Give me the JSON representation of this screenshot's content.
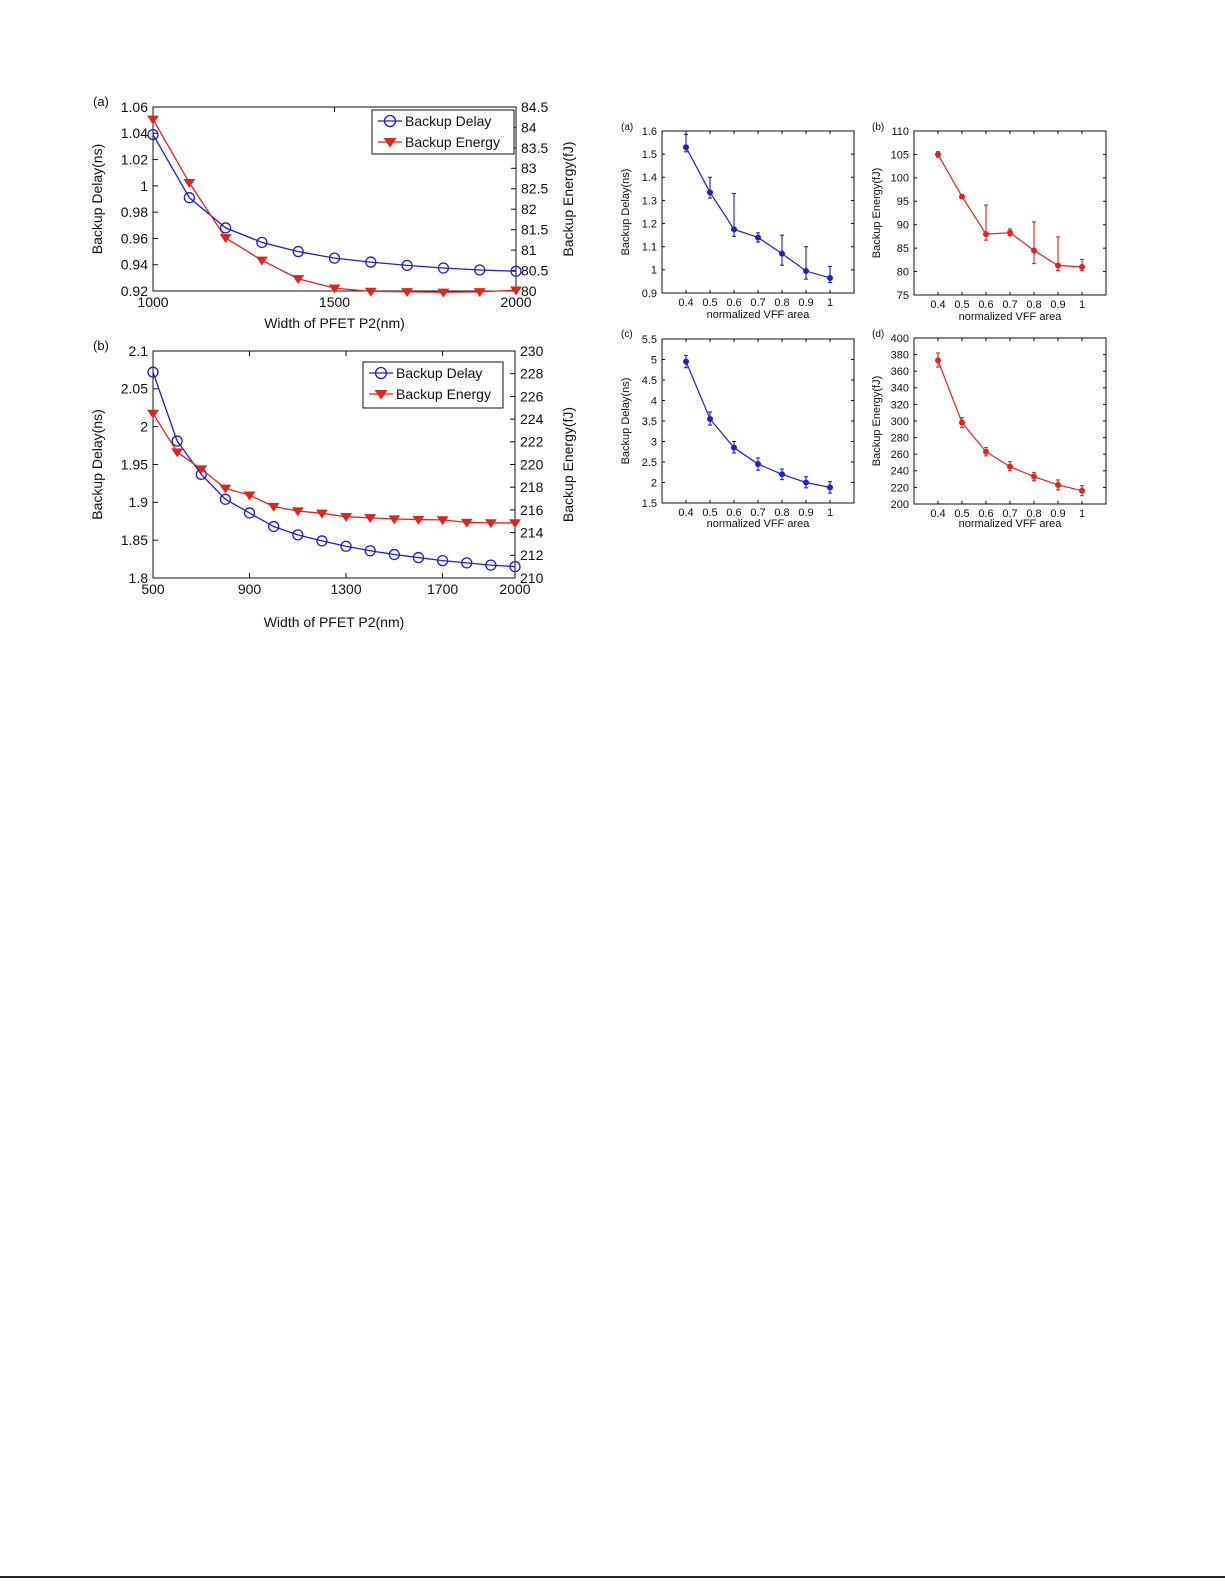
{
  "colors": {
    "delay": "#1f1fd6",
    "energy": "#e0251e",
    "axis": "#111111"
  },
  "chart_data": [
    {
      "id": "left-a",
      "type": "line",
      "panel_label": "(a)",
      "xlabel": "Width of PFET P2(nm)",
      "ylabel": "Backup Delay(ns)",
      "ylabel_right": "Backup Energy(fJ)",
      "xlim": [
        1000,
        2000
      ],
      "xticks": [
        1000,
        1500,
        2000
      ],
      "ylim": [
        0.92,
        1.06
      ],
      "yticks": [
        0.92,
        0.94,
        0.96,
        0.98,
        1,
        1.02,
        1.04,
        1.06
      ],
      "ylim_right": [
        80,
        84.5
      ],
      "yticks_right": [
        80,
        80.5,
        81,
        81.5,
        82,
        82.5,
        83,
        83.5,
        84,
        84.5
      ],
      "legend": {
        "position": "top-right",
        "entries": [
          "Backup Delay",
          "Backup Energy"
        ]
      },
      "grid": false,
      "x": [
        1000,
        1100,
        1200,
        1300,
        1400,
        1500,
        1600,
        1700,
        1800,
        1900,
        2000
      ],
      "series": [
        {
          "name": "Backup Delay",
          "axis": "left",
          "marker": "circle",
          "color": "#1f1fd6",
          "values": [
            1.039,
            0.991,
            0.968,
            0.957,
            0.95,
            0.945,
            0.942,
            0.9395,
            0.9375,
            0.936,
            0.935
          ]
        },
        {
          "name": "Backup Energy",
          "axis": "right",
          "marker": "triangle-down",
          "color": "#e0251e",
          "values": [
            84.2,
            82.65,
            81.3,
            80.75,
            80.3,
            80.07,
            79.99,
            79.98,
            79.97,
            79.98,
            80.02
          ]
        }
      ]
    },
    {
      "id": "left-b",
      "type": "line",
      "panel_label": "(b)",
      "xlabel": "Width of PFET P2(nm)",
      "ylabel": "Backup Delay(ns)",
      "ylabel_right": "Backup Energy(fJ)",
      "xlim": [
        500,
        2000
      ],
      "xticks": [
        500,
        900,
        1300,
        1700,
        2000
      ],
      "ylim": [
        1.8,
        2.1
      ],
      "yticks": [
        1.8,
        1.85,
        1.9,
        1.95,
        2,
        2.05,
        2.1
      ],
      "ylim_right": [
        210,
        230
      ],
      "yticks_right": [
        210,
        212,
        214,
        216,
        218,
        220,
        222,
        224,
        226,
        228,
        230
      ],
      "legend": {
        "position": "top-right",
        "entries": [
          "Backup Delay",
          "Backup Energy"
        ]
      },
      "grid": false,
      "x": [
        500,
        600,
        700,
        800,
        900,
        1000,
        1100,
        1200,
        1300,
        1400,
        1500,
        1600,
        1700,
        1800,
        1900,
        2000
      ],
      "series": [
        {
          "name": "Backup Delay",
          "axis": "left",
          "marker": "circle",
          "color": "#1f1fd6",
          "values": [
            2.072,
            1.981,
            1.937,
            1.904,
            1.886,
            1.868,
            1.857,
            1.849,
            1.842,
            1.836,
            1.831,
            1.827,
            1.823,
            1.82,
            1.817,
            1.815
          ]
        },
        {
          "name": "Backup Energy",
          "axis": "right",
          "marker": "triangle-down",
          "color": "#e0251e",
          "values": [
            224.5,
            221.1,
            219.6,
            217.9,
            217.3,
            216.3,
            215.9,
            215.7,
            215.4,
            215.3,
            215.2,
            215.15,
            215.12,
            214.9,
            214.85,
            214.85
          ]
        }
      ]
    },
    {
      "id": "right-a",
      "type": "line",
      "panel_label": "(a)",
      "xlabel": "normalized VFF area",
      "ylabel": "Backup Delay(ns)",
      "xlim": [
        0.3,
        1.1
      ],
      "xticks": [
        0.4,
        0.5,
        0.6,
        0.7,
        0.8,
        0.9,
        1
      ],
      "xtick_labels": [
        "0.4",
        "0.5",
        "0.6",
        "0.7",
        "0.8",
        "0.9",
        "1"
      ],
      "ylim": [
        0.9,
        1.6
      ],
      "yticks": [
        0.9,
        1,
        1.1,
        1.2,
        1.3,
        1.4,
        1.5,
        1.6
      ],
      "grid": false,
      "x": [
        0.4,
        0.5,
        0.6,
        0.7,
        0.8,
        0.9,
        1
      ],
      "series": [
        {
          "color": "#1f1fd6",
          "values": [
            1.53,
            1.335,
            1.175,
            1.14,
            1.07,
            0.995,
            0.965
          ],
          "err_low": [
            1.51,
            1.31,
            1.145,
            1.12,
            1.02,
            0.96,
            0.945
          ],
          "err_high": [
            1.585,
            1.4,
            1.33,
            1.16,
            1.15,
            1.1,
            1.015
          ]
        }
      ]
    },
    {
      "id": "right-b",
      "type": "line",
      "panel_label": "(b)",
      "xlabel": "normalized VFF area",
      "ylabel": "Backup Energy(fJ)",
      "xlim": [
        0.3,
        1.1
      ],
      "xticks": [
        0.4,
        0.5,
        0.6,
        0.7,
        0.8,
        0.9,
        1
      ],
      "xtick_labels": [
        "0.4",
        "0.5",
        "0.6",
        "0.7",
        "0.8",
        "0.9",
        "1"
      ],
      "ylim": [
        75,
        110
      ],
      "yticks": [
        75,
        80,
        85,
        90,
        95,
        100,
        105,
        110
      ],
      "grid": false,
      "x": [
        0.4,
        0.5,
        0.6,
        0.7,
        0.8,
        0.9,
        1
      ],
      "series": [
        {
          "color": "#e0251e",
          "values": [
            105,
            96,
            88,
            88.3,
            84.5,
            81.3,
            81
          ],
          "err_low": [
            104.4,
            95.8,
            86.7,
            87.6,
            81.7,
            80.2,
            80.2
          ],
          "err_high": [
            105.6,
            96.3,
            94.2,
            89.1,
            90.6,
            87.4,
            82.6
          ]
        }
      ]
    },
    {
      "id": "right-c",
      "type": "line",
      "panel_label": "(c)",
      "xlabel": "normalized VFF area",
      "ylabel": "Backup Delay(ns)",
      "xlim": [
        0.3,
        1.1
      ],
      "xticks": [
        0.4,
        0.5,
        0.6,
        0.7,
        0.8,
        0.9,
        1
      ],
      "xtick_labels": [
        "0.4",
        "0.5",
        "0.6",
        "0.7",
        "0.8",
        "0.9",
        "1"
      ],
      "ylim": [
        1.5,
        5.5
      ],
      "yticks": [
        1.5,
        2,
        2.5,
        3,
        3.5,
        4,
        4.5,
        5,
        5.5
      ],
      "grid": false,
      "x": [
        0.4,
        0.5,
        0.6,
        0.7,
        0.8,
        0.9,
        1
      ],
      "series": [
        {
          "color": "#1f1fd6",
          "values": [
            4.95,
            3.55,
            2.85,
            2.45,
            2.2,
            2.0,
            1.88
          ],
          "err_low": [
            4.8,
            3.4,
            2.72,
            2.3,
            2.07,
            1.87,
            1.74
          ],
          "err_high": [
            5.1,
            3.72,
            3.0,
            2.6,
            2.33,
            2.14,
            2.02
          ]
        }
      ]
    },
    {
      "id": "right-d",
      "type": "line",
      "panel_label": "(d)",
      "xlabel": "normalized VFF area",
      "ylabel": "Backup Energy(fJ)",
      "xlim": [
        0.3,
        1.1
      ],
      "xticks": [
        0.4,
        0.5,
        0.6,
        0.7,
        0.8,
        0.9,
        1
      ],
      "xtick_labels": [
        "0.4",
        "0.5",
        "0.6",
        "0.7",
        "0.8",
        "0.9",
        "1"
      ],
      "ylim": [
        200,
        400
      ],
      "yticks": [
        200,
        220,
        240,
        260,
        280,
        300,
        320,
        340,
        360,
        380,
        400
      ],
      "grid": false,
      "x": [
        0.4,
        0.5,
        0.6,
        0.7,
        0.8,
        0.9,
        1
      ],
      "series": [
        {
          "color": "#e0251e",
          "values": [
            373,
            298,
            263,
            245,
            233,
            223,
            216
          ],
          "err_low": [
            365,
            292,
            258,
            240,
            228,
            217,
            210
          ],
          "err_high": [
            382,
            304,
            268,
            251,
            238,
            229,
            222
          ]
        }
      ]
    }
  ]
}
